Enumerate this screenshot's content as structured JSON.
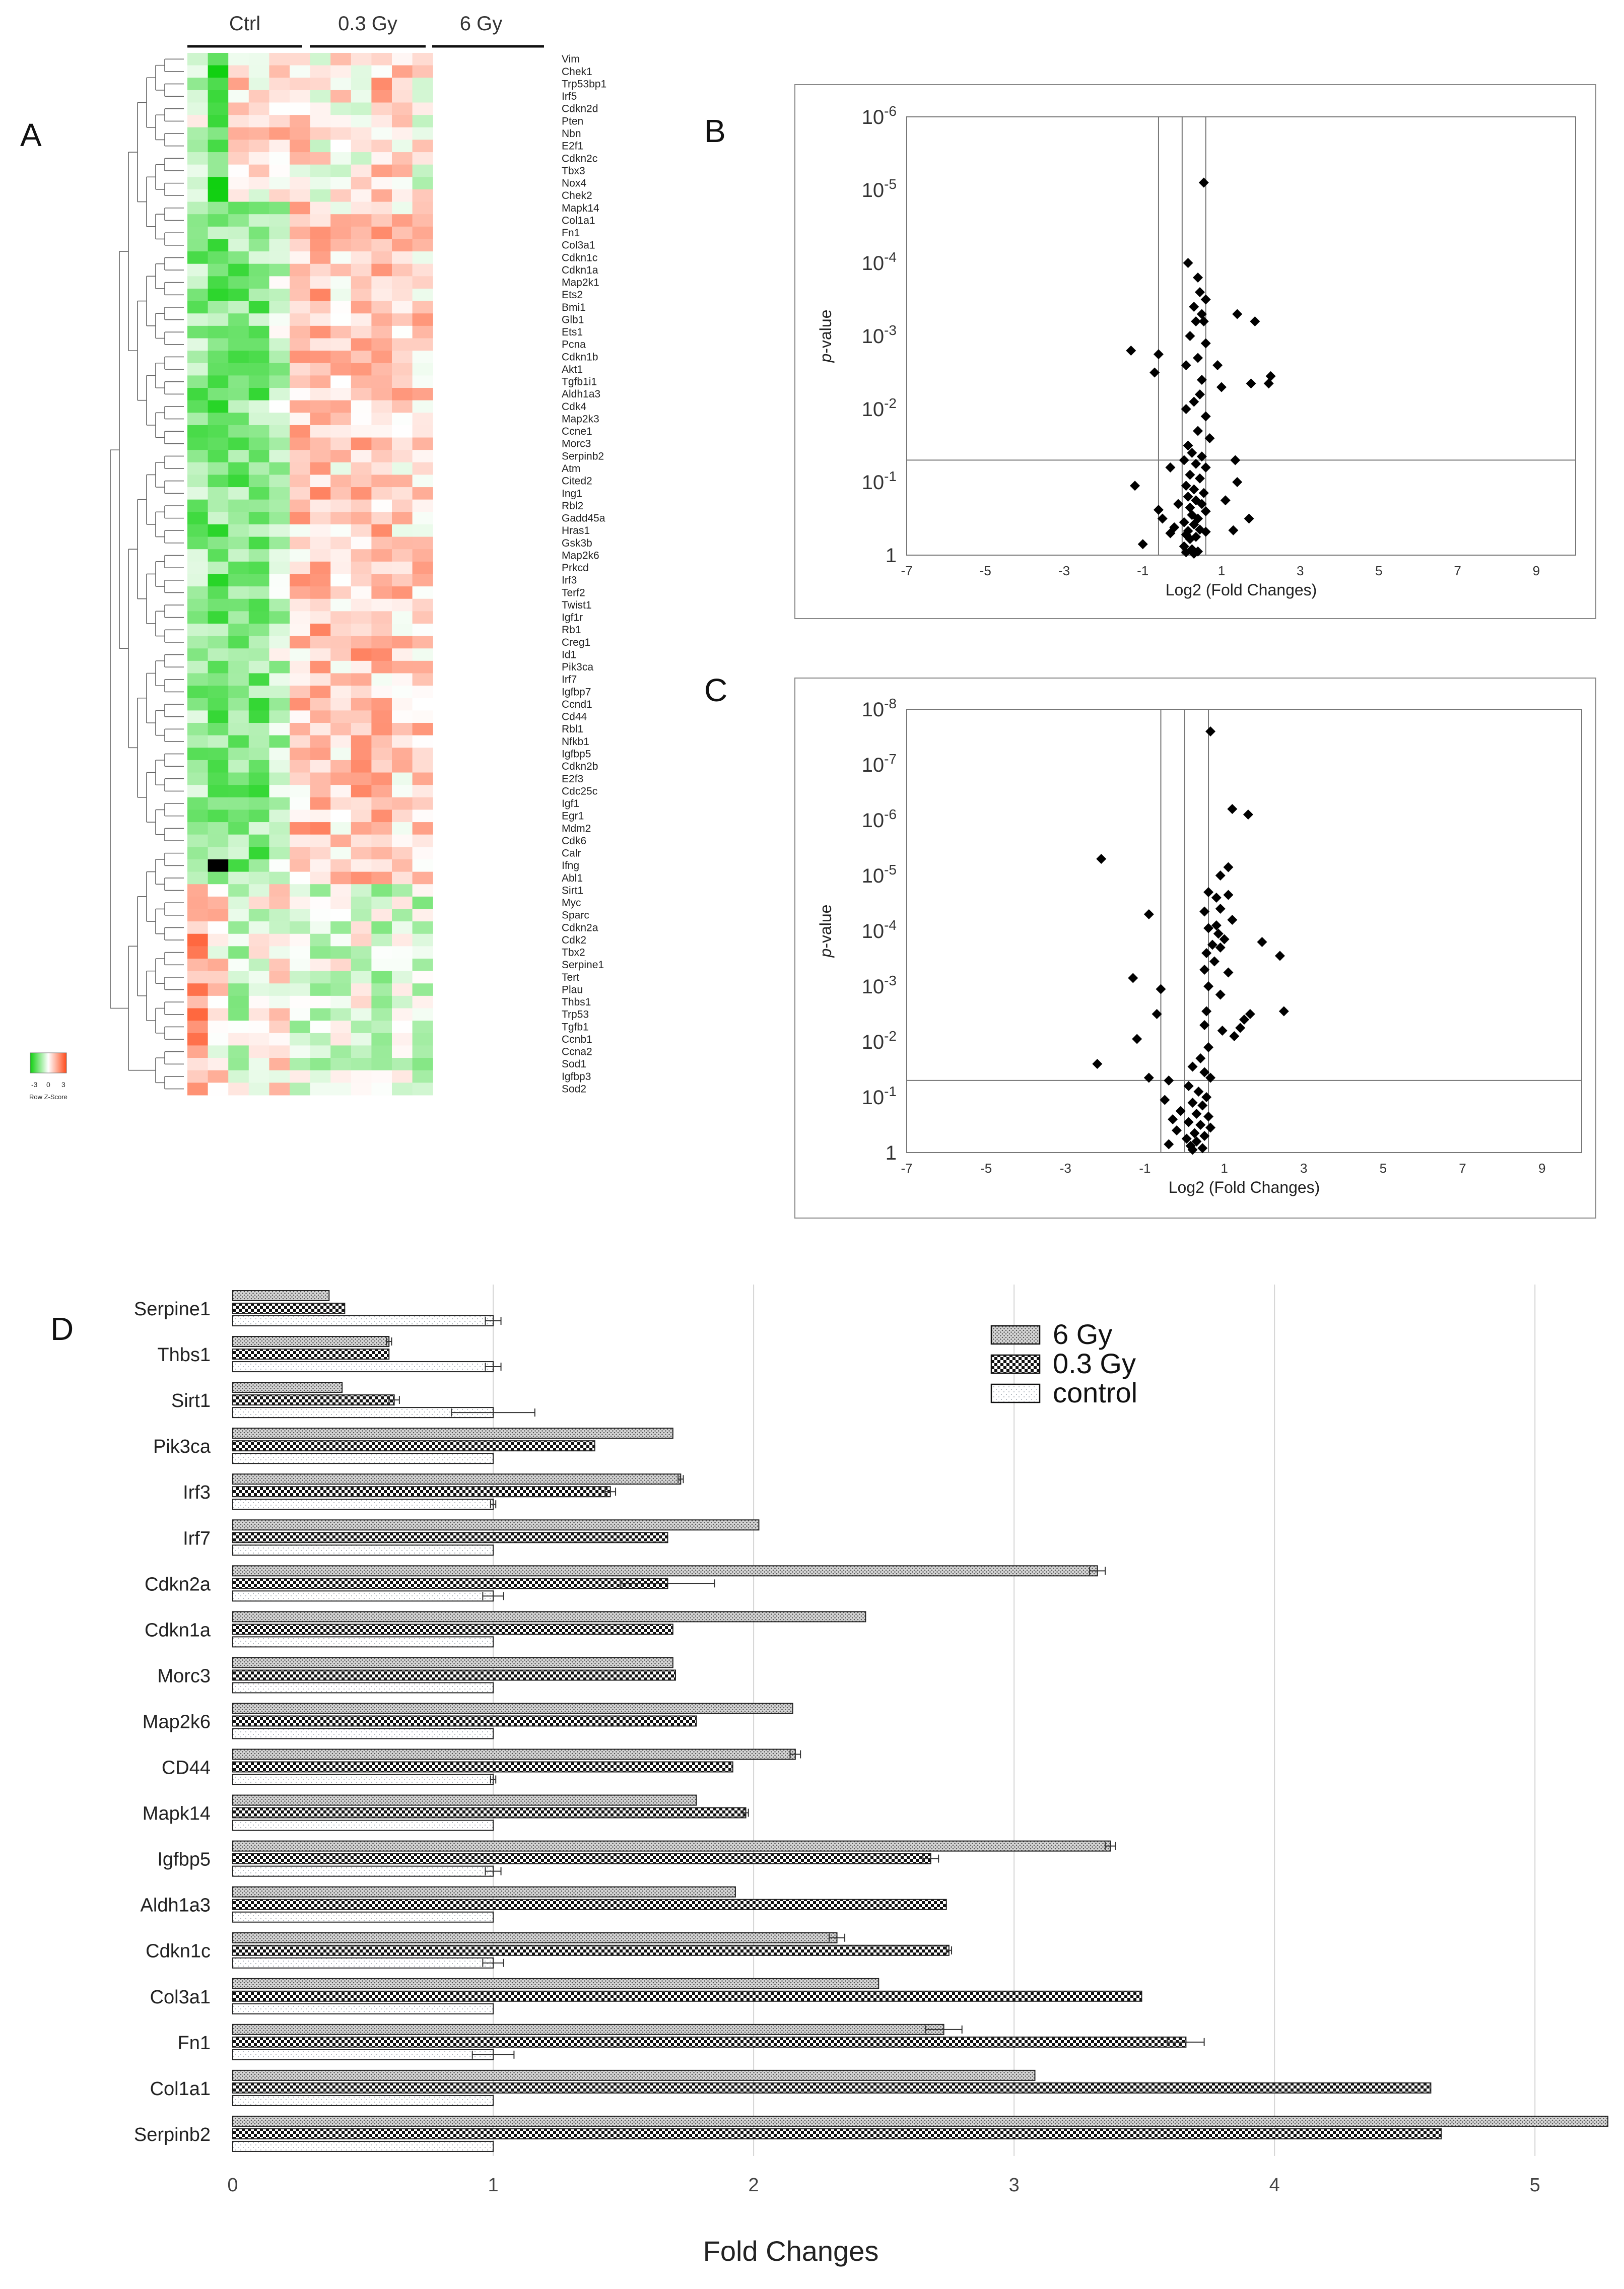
{
  "panels": {
    "A": "A",
    "B": "B",
    "C": "C",
    "D": "D"
  },
  "heatmap": {
    "group_labels": [
      "Ctrl",
      "0.3 Gy",
      "6 Gy"
    ],
    "colorkey_ticks": [
      "-3",
      "0",
      "3"
    ],
    "colorkey_label": "Row Z-Score",
    "colors": {
      "low": "#10d010",
      "mid": "#ffffff",
      "high": "#ff4a1a",
      "missing": "#000000"
    },
    "genes": [
      "Vim",
      "Chek1",
      "Trp53bp1",
      "Irf5",
      "Cdkn2d",
      "Pten",
      "Nbn",
      "E2f1",
      "Cdkn2c",
      "Tbx3",
      "Nox4",
      "Chek2",
      "Mapk14",
      "Col1a1",
      "Fn1",
      "Col3a1",
      "Cdkn1c",
      "Cdkn1a",
      "Map2k1",
      "Ets2",
      "Bmi1",
      "Glb1",
      "Ets1",
      "Pcna",
      "Cdkn1b",
      "Akt1",
      "Tgfb1i1",
      "Aldh1a3",
      "Cdk4",
      "Map2k3",
      "Ccne1",
      "Morc3",
      "Serpinb2",
      "Atm",
      "Cited2",
      "Ing1",
      "Rbl2",
      "Gadd45a",
      "Hras1",
      "Gsk3b",
      "Map2k6",
      "Prkcd",
      "Irf3",
      "Terf2",
      "Twist1",
      "Igf1r",
      "Rb1",
      "Creg1",
      "Id1",
      "Pik3ca",
      "Irf7",
      "Igfbp7",
      "Ccnd1",
      "Cd44",
      "Rbl1",
      "Nfkb1",
      "Igfbp5",
      "Cdkn2b",
      "E2f3",
      "Cdc25c",
      "Igf1",
      "Egr1",
      "Mdm2",
      "Cdk6",
      "Calr",
      "Ifng",
      "Abl1",
      "Sirt1",
      "Myc",
      "Sparc",
      "Cdkn2a",
      "Cdk2",
      "Tbx2",
      "Serpine1",
      "Tert",
      "Plau",
      "Thbs1",
      "Trp53",
      "Tgfb1",
      "Ccnb1",
      "Ccna2",
      "Sod1",
      "Igfbp3",
      "Sod2"
    ]
  },
  "chart_data": [
    {
      "panel": "B",
      "type": "scatter",
      "title": "",
      "xlabel": "Log2 (Fold Changes)",
      "ylabel": "p-value",
      "ylabel_italic_part": "p",
      "ylabel_rest": "-value",
      "x_ticks": [
        "-7",
        "-5",
        "-3",
        "-1",
        "1",
        "3",
        "5",
        "7",
        "9"
      ],
      "xlim": [
        -7,
        10
      ],
      "y_ticks": [
        {
          "base": "1",
          "exp": ""
        },
        {
          "base": "10",
          "exp": "-1"
        },
        {
          "base": "10",
          "exp": "-2"
        },
        {
          "base": "10",
          "exp": "-3"
        },
        {
          "base": "10",
          "exp": "-4"
        },
        {
          "base": "10",
          "exp": "-5"
        },
        {
          "base": "10",
          "exp": "-6"
        }
      ],
      "y_scale": "log, inverted (-log10 p from 0 to 6)",
      "ylim_neglog10": [
        0,
        6
      ],
      "reference_lines": {
        "x": [
          -0.6,
          0,
          0.6
        ],
        "p": 0.05
      },
      "points_log2fc_neglog10p": [
        [
          0.55,
          5.1
        ],
        [
          0.15,
          4.0
        ],
        [
          0.4,
          3.8
        ],
        [
          0.45,
          3.6
        ],
        [
          0.6,
          3.5
        ],
        [
          0.3,
          3.4
        ],
        [
          0.5,
          3.3
        ],
        [
          1.4,
          3.3
        ],
        [
          0.35,
          3.2
        ],
        [
          0.55,
          3.2
        ],
        [
          1.85,
          3.2
        ],
        [
          0.2,
          3.0
        ],
        [
          0.6,
          2.9
        ],
        [
          -1.3,
          2.8
        ],
        [
          0.4,
          2.7
        ],
        [
          -0.6,
          2.75
        ],
        [
          0.1,
          2.6
        ],
        [
          0.9,
          2.6
        ],
        [
          -0.7,
          2.5
        ],
        [
          2.25,
          2.45
        ],
        [
          0.5,
          2.4
        ],
        [
          1.75,
          2.35
        ],
        [
          2.2,
          2.35
        ],
        [
          1.0,
          2.3
        ],
        [
          0.45,
          2.2
        ],
        [
          0.3,
          2.1
        ],
        [
          0.1,
          2.0
        ],
        [
          0.6,
          1.9
        ],
        [
          0.4,
          1.7
        ],
        [
          0.7,
          1.6
        ],
        [
          0.15,
          1.5
        ],
        [
          0.25,
          1.4
        ],
        [
          0.5,
          1.35
        ],
        [
          0.05,
          1.3
        ],
        [
          0.35,
          1.25
        ],
        [
          1.35,
          1.3
        ],
        [
          0.6,
          1.2
        ],
        [
          -0.3,
          1.2
        ],
        [
          0.2,
          1.1
        ],
        [
          0.45,
          1.05
        ],
        [
          1.4,
          1.0
        ],
        [
          -1.2,
          0.95
        ],
        [
          0.1,
          0.95
        ],
        [
          0.3,
          0.9
        ],
        [
          0.55,
          0.85
        ],
        [
          0.15,
          0.8
        ],
        [
          0.35,
          0.75
        ],
        [
          1.1,
          0.75
        ],
        [
          -0.1,
          0.7
        ],
        [
          0.5,
          0.7
        ],
        [
          0.2,
          0.65
        ],
        [
          -0.6,
          0.62
        ],
        [
          0.6,
          0.6
        ],
        [
          0.25,
          0.55
        ],
        [
          -0.5,
          0.5
        ],
        [
          0.4,
          0.5
        ],
        [
          1.7,
          0.5
        ],
        [
          0.05,
          0.45
        ],
        [
          0.3,
          0.42
        ],
        [
          -0.2,
          0.38
        ],
        [
          0.45,
          0.35
        ],
        [
          0.15,
          0.33
        ],
        [
          0.6,
          0.32
        ],
        [
          1.3,
          0.34
        ],
        [
          -0.3,
          0.3
        ],
        [
          0.1,
          0.28
        ],
        [
          0.35,
          0.25
        ],
        [
          0.2,
          0.22
        ],
        [
          -1.0,
          0.15
        ],
        [
          0.05,
          0.12
        ],
        [
          0.25,
          0.08
        ],
        [
          0.4,
          0.05
        ],
        [
          0.1,
          0.04
        ],
        [
          0.3,
          0.02
        ]
      ]
    },
    {
      "panel": "C",
      "type": "scatter",
      "title": "",
      "xlabel": "Log2 (Fold Changes)",
      "ylabel": "p-value",
      "x_ticks": [
        "-7",
        "-5",
        "-3",
        "-1",
        "1",
        "3",
        "5",
        "7",
        "9"
      ],
      "xlim": [
        -7,
        10
      ],
      "y_ticks": [
        {
          "base": "1",
          "exp": ""
        },
        {
          "base": "10",
          "exp": "-1"
        },
        {
          "base": "10",
          "exp": "-2"
        },
        {
          "base": "10",
          "exp": "-3"
        },
        {
          "base": "10",
          "exp": "-4"
        },
        {
          "base": "10",
          "exp": "-5"
        },
        {
          "base": "10",
          "exp": "-6"
        },
        {
          "base": "10",
          "exp": "-7"
        },
        {
          "base": "10",
          "exp": "-8"
        }
      ],
      "y_scale": "log, inverted (-log10 p from 0 to 8)",
      "ylim_neglog10": [
        0,
        8
      ],
      "reference_lines": {
        "x": [
          -0.6,
          0,
          0.6
        ],
        "p": 0.05
      },
      "points_log2fc_neglog10p": [
        [
          0.65,
          7.6
        ],
        [
          1.2,
          6.2
        ],
        [
          1.6,
          6.1
        ],
        [
          -2.1,
          5.3
        ],
        [
          1.1,
          5.15
        ],
        [
          0.9,
          5.0
        ],
        [
          0.6,
          4.7
        ],
        [
          1.1,
          4.65
        ],
        [
          0.8,
          4.6
        ],
        [
          -0.9,
          4.3
        ],
        [
          0.5,
          4.35
        ],
        [
          0.9,
          4.4
        ],
        [
          1.2,
          4.2
        ],
        [
          0.8,
          4.1
        ],
        [
          0.6,
          4.05
        ],
        [
          0.85,
          3.95
        ],
        [
          1.0,
          3.85
        ],
        [
          1.95,
          3.8
        ],
        [
          0.7,
          3.75
        ],
        [
          0.9,
          3.7
        ],
        [
          2.4,
          3.55
        ],
        [
          0.55,
          3.6
        ],
        [
          0.75,
          3.45
        ],
        [
          0.5,
          3.3
        ],
        [
          1.1,
          3.25
        ],
        [
          -1.3,
          3.15
        ],
        [
          0.6,
          3.0
        ],
        [
          -0.6,
          2.95
        ],
        [
          0.9,
          2.85
        ],
        [
          2.5,
          2.55
        ],
        [
          -0.7,
          2.5
        ],
        [
          0.55,
          2.55
        ],
        [
          1.65,
          2.5
        ],
        [
          1.5,
          2.4
        ],
        [
          0.5,
          2.3
        ],
        [
          1.4,
          2.25
        ],
        [
          0.95,
          2.2
        ],
        [
          1.25,
          2.1
        ],
        [
          -1.2,
          2.05
        ],
        [
          0.6,
          1.9
        ],
        [
          -2.2,
          1.6
        ],
        [
          0.4,
          1.7
        ],
        [
          0.2,
          1.55
        ],
        [
          0.5,
          1.45
        ],
        [
          -0.9,
          1.35
        ],
        [
          0.65,
          1.35
        ],
        [
          -0.4,
          1.3
        ],
        [
          0.1,
          1.2
        ],
        [
          0.35,
          1.1
        ],
        [
          0.55,
          1.0
        ],
        [
          -0.5,
          0.95
        ],
        [
          0.2,
          0.9
        ],
        [
          0.45,
          0.85
        ],
        [
          -0.1,
          0.75
        ],
        [
          0.3,
          0.7
        ],
        [
          0.6,
          0.65
        ],
        [
          -0.3,
          0.6
        ],
        [
          0.1,
          0.55
        ],
        [
          0.4,
          0.5
        ],
        [
          0.65,
          0.45
        ],
        [
          -0.2,
          0.4
        ],
        [
          0.25,
          0.35
        ],
        [
          0.5,
          0.3
        ],
        [
          0.05,
          0.25
        ],
        [
          0.3,
          0.2
        ],
        [
          -0.4,
          0.15
        ],
        [
          0.15,
          0.12
        ],
        [
          0.45,
          0.08
        ],
        [
          0.2,
          0.05
        ]
      ]
    },
    {
      "panel": "D",
      "type": "bar",
      "orientation": "horizontal",
      "title": "",
      "xlabel": "Fold Changes",
      "ylabel": "",
      "xlim": [
        0,
        5.28
      ],
      "x_ticks": [
        "0",
        "1",
        "2",
        "3",
        "4",
        "5"
      ],
      "grid": "vertical gridlines",
      "legend_position": "top-right",
      "categories": [
        "Serpine1",
        "Thbs1",
        "Sirt1",
        "Pik3ca",
        "Irf3",
        "Irf7",
        "Cdkn2a",
        "Cdkn1a",
        "Morc3",
        "Map2k6",
        "CD44",
        "Mapk14",
        "Igfbp5",
        "Aldh1a3",
        "Cdkn1c",
        "Col3a1",
        "Fn1",
        "Col1a1",
        "Serpinb2"
      ],
      "series": [
        {
          "name": "6 Gy",
          "pattern": "dense-dots",
          "values": [
            0.37,
            0.6,
            0.42,
            1.69,
            1.72,
            2.02,
            3.32,
            2.43,
            1.69,
            2.15,
            2.16,
            1.78,
            3.37,
            1.93,
            2.32,
            2.48,
            2.73,
            3.08,
            5.28
          ],
          "errors": [
            0,
            0.01,
            0,
            0,
            0.01,
            0,
            0.03,
            0,
            0,
            0,
            0.02,
            0,
            0.02,
            0,
            0.03,
            0,
            0.07,
            0,
            0
          ]
        },
        {
          "name": "0.3 Gy",
          "pattern": "checker",
          "values": [
            0.43,
            0.6,
            0.62,
            1.39,
            1.45,
            1.67,
            1.67,
            1.69,
            1.7,
            1.78,
            1.92,
            1.97,
            2.68,
            2.74,
            2.75,
            3.49,
            3.66,
            4.6,
            4.64
          ],
          "errors": [
            0,
            0,
            0.02,
            0,
            0.02,
            0,
            0.18,
            0,
            0,
            0,
            0,
            0.01,
            0.03,
            0,
            0.01,
            0,
            0.07,
            0,
            0
          ]
        },
        {
          "name": "control",
          "pattern": "sparse-dots",
          "values": [
            1,
            1,
            1,
            1,
            1,
            1,
            1,
            1,
            1,
            1,
            1,
            1,
            1,
            1,
            1,
            1,
            1,
            1,
            1
          ],
          "errors": [
            0.03,
            0.03,
            0.16,
            0,
            0.01,
            0,
            0.04,
            0,
            0,
            0,
            0.01,
            0,
            0.03,
            0,
            0.04,
            0,
            0.08,
            0,
            0
          ]
        }
      ]
    }
  ]
}
